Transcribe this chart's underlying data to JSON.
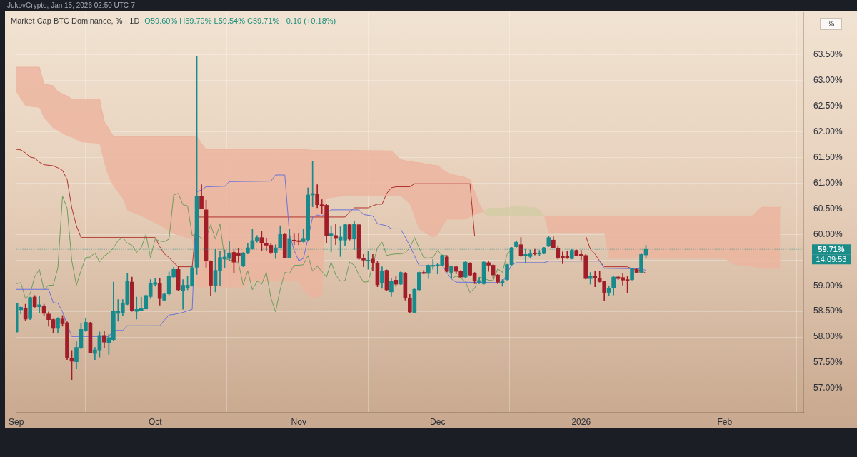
{
  "chart_data": {
    "type": "candlestick",
    "title": "Market Cap BTC Dominance, % · 1D",
    "subtitle": "O59.60% H59.79% L59.54% C59.71% +0.10 (+0.18%)",
    "ylabel": "%",
    "annotations": [
      "JukovCrypto, Jan 15, 2026 02:50 UTC-7",
      "14:09:53"
    ],
    "x": [
      "2025-09-01",
      "2025-09-02",
      "2025-09-03",
      "2025-09-04",
      "2025-09-05",
      "2025-09-06",
      "2025-09-07",
      "2025-09-08",
      "2025-09-09",
      "2025-09-10",
      "2025-09-11",
      "2025-09-12",
      "2025-09-13",
      "2025-09-14",
      "2025-09-15",
      "2025-09-16",
      "2025-09-17",
      "2025-09-18",
      "2025-09-19",
      "2025-09-20",
      "2025-09-21",
      "2025-09-22",
      "2025-09-23",
      "2025-09-24",
      "2025-09-25",
      "2025-09-26",
      "2025-09-27",
      "2025-09-28",
      "2025-09-29",
      "2025-09-30",
      "2025-10-01",
      "2025-10-02",
      "2025-10-03",
      "2025-10-04",
      "2025-10-05",
      "2025-10-06",
      "2025-10-07",
      "2025-10-08",
      "2025-10-09",
      "2025-10-10",
      "2025-10-11",
      "2025-10-12",
      "2025-10-13",
      "2025-10-14",
      "2025-10-15",
      "2025-10-16",
      "2025-10-17",
      "2025-10-18",
      "2025-10-19",
      "2025-10-20",
      "2025-10-21",
      "2025-10-22",
      "2025-10-23",
      "2025-10-24",
      "2025-10-25",
      "2025-10-26",
      "2025-10-27",
      "2025-10-28",
      "2025-10-29",
      "2025-10-30",
      "2025-10-31",
      "2025-11-01",
      "2025-11-02",
      "2025-11-03",
      "2025-11-04",
      "2025-11-05",
      "2025-11-06",
      "2025-11-07",
      "2025-11-08",
      "2025-11-09",
      "2025-11-10",
      "2025-11-11",
      "2025-11-12",
      "2025-11-13",
      "2025-11-14",
      "2025-11-15",
      "2025-11-16",
      "2025-11-17",
      "2025-11-18",
      "2025-11-19",
      "2025-11-20",
      "2025-11-21",
      "2025-11-22",
      "2025-11-23",
      "2025-11-24",
      "2025-11-25",
      "2025-11-26",
      "2025-11-27",
      "2025-11-28",
      "2025-11-29",
      "2025-11-30",
      "2025-12-01",
      "2025-12-02",
      "2025-12-03",
      "2025-12-04",
      "2025-12-05",
      "2025-12-06",
      "2025-12-07",
      "2025-12-08",
      "2025-12-09",
      "2025-12-10",
      "2025-12-11",
      "2025-12-12",
      "2025-12-13",
      "2025-12-14",
      "2025-12-15",
      "2025-12-16",
      "2025-12-17",
      "2025-12-18",
      "2025-12-19",
      "2025-12-20",
      "2025-12-21",
      "2025-12-22",
      "2025-12-23",
      "2025-12-24",
      "2025-12-25",
      "2025-12-26",
      "2025-12-27",
      "2025-12-28",
      "2025-12-29",
      "2025-12-30",
      "2025-12-31",
      "2026-01-01",
      "2026-01-02",
      "2026-01-03",
      "2026-01-04",
      "2026-01-05",
      "2026-01-06",
      "2026-01-07",
      "2026-01-08",
      "2026-01-09",
      "2026-01-10",
      "2026-01-11",
      "2026-01-12",
      "2026-01-13",
      "2026-01-14",
      "2026-01-15"
    ],
    "ohlc": [
      [
        58.1,
        58.66,
        58.08,
        58.65
      ],
      [
        58.53,
        58.59,
        58.45,
        58.58
      ],
      [
        58.56,
        58.64,
        58.32,
        58.35
      ],
      [
        58.36,
        58.78,
        58.34,
        58.77
      ],
      [
        58.78,
        58.81,
        58.58,
        58.59
      ],
      [
        58.59,
        58.79,
        58.48,
        58.63
      ],
      [
        58.61,
        58.64,
        58.42,
        58.46
      ],
      [
        58.45,
        58.49,
        58.21,
        58.34
      ],
      [
        58.34,
        58.35,
        58.09,
        58.17
      ],
      [
        58.17,
        58.38,
        58.09,
        58.36
      ],
      [
        58.35,
        58.42,
        58.21,
        58.26
      ],
      [
        58.28,
        58.3,
        57.56,
        57.59
      ],
      [
        57.59,
        57.74,
        57.17,
        57.53
      ],
      [
        57.52,
        57.91,
        57.38,
        57.8
      ],
      [
        57.79,
        58.26,
        57.77,
        58.15
      ],
      [
        58.13,
        58.37,
        58.11,
        58.29
      ],
      [
        58.28,
        58.29,
        57.69,
        57.7
      ],
      [
        57.68,
        57.8,
        57.56,
        57.75
      ],
      [
        57.75,
        58.1,
        57.61,
        58.03
      ],
      [
        58.03,
        58.11,
        57.79,
        57.9
      ],
      [
        57.89,
        58.05,
        57.66,
        57.99
      ],
      [
        57.95,
        59.07,
        57.93,
        58.51
      ],
      [
        58.46,
        58.73,
        58.31,
        58.5
      ],
      [
        58.48,
        58.73,
        58.42,
        58.66
      ],
      [
        58.64,
        59.24,
        58.63,
        59.09
      ],
      [
        59.07,
        59.17,
        58.5,
        58.52
      ],
      [
        58.5,
        58.78,
        58.35,
        58.54
      ],
      [
        58.52,
        58.78,
        58.51,
        58.56
      ],
      [
        58.55,
        58.82,
        58.54,
        58.81
      ],
      [
        58.79,
        59.12,
        58.75,
        59.04
      ],
      [
        59.03,
        59.15,
        58.99,
        59.06
      ],
      [
        59.04,
        59.15,
        58.62,
        58.75
      ],
      [
        58.72,
        58.85,
        58.71,
        58.84
      ],
      [
        58.84,
        59.27,
        58.82,
        59.18
      ],
      [
        59.17,
        59.36,
        59.15,
        59.32
      ],
      [
        59.32,
        59.37,
        58.9,
        58.92
      ],
      [
        58.9,
        59.12,
        58.54,
        59.01
      ],
      [
        58.96,
        59.19,
        58.92,
        59.01
      ],
      [
        59.0,
        59.39,
        58.99,
        59.35
      ],
      [
        59.36,
        63.47,
        59.22,
        60.75
      ],
      [
        60.75,
        60.97,
        60.5,
        60.51
      ],
      [
        60.48,
        60.67,
        59.36,
        59.49
      ],
      [
        59.48,
        59.49,
        58.8,
        59.01
      ],
      [
        59.0,
        59.71,
        58.88,
        59.3
      ],
      [
        59.3,
        59.68,
        59.0,
        59.55
      ],
      [
        59.52,
        59.7,
        59.35,
        59.56
      ],
      [
        59.53,
        59.87,
        59.48,
        59.64
      ],
      [
        59.65,
        59.69,
        59.25,
        59.46
      ],
      [
        59.64,
        59.73,
        59.46,
        59.58
      ],
      [
        59.39,
        59.65,
        59.37,
        59.64
      ],
      [
        59.64,
        59.83,
        59.62,
        59.74
      ],
      [
        59.72,
        60.1,
        59.71,
        59.88
      ],
      [
        59.88,
        59.98,
        59.85,
        59.94
      ],
      [
        59.94,
        60.06,
        59.69,
        59.83
      ],
      [
        59.82,
        59.92,
        59.69,
        59.79
      ],
      [
        59.79,
        59.83,
        59.62,
        59.65
      ],
      [
        59.65,
        59.8,
        59.53,
        59.74
      ],
      [
        59.74,
        60.17,
        59.73,
        60.0
      ],
      [
        60.0,
        60.01,
        59.54,
        59.55
      ],
      [
        59.55,
        60.1,
        59.54,
        59.91
      ],
      [
        59.89,
        60.01,
        59.8,
        59.87
      ],
      [
        59.88,
        60.02,
        59.8,
        59.86
      ],
      [
        59.86,
        60.1,
        59.85,
        59.91
      ],
      [
        59.9,
        60.91,
        59.87,
        60.77
      ],
      [
        60.77,
        61.42,
        60.54,
        60.8
      ],
      [
        60.79,
        60.97,
        60.52,
        60.58
      ],
      [
        60.58,
        60.68,
        60.4,
        60.56
      ],
      [
        60.57,
        60.6,
        59.83,
        59.98
      ],
      [
        59.98,
        60.17,
        59.66,
        60.01
      ],
      [
        59.98,
        60.21,
        59.8,
        59.92
      ],
      [
        59.89,
        60.15,
        59.57,
        59.95
      ],
      [
        59.89,
        60.2,
        59.78,
        60.19
      ],
      [
        60.19,
        60.2,
        59.89,
        59.91
      ],
      [
        59.91,
        60.25,
        59.71,
        60.2
      ],
      [
        60.19,
        60.2,
        59.51,
        59.53
      ],
      [
        59.54,
        59.61,
        59.37,
        59.5
      ],
      [
        59.48,
        59.68,
        59.32,
        59.5
      ],
      [
        59.52,
        59.61,
        59.3,
        59.44
      ],
      [
        59.44,
        59.47,
        58.98,
        59.02
      ],
      [
        59.06,
        59.37,
        58.95,
        59.29
      ],
      [
        59.3,
        59.31,
        58.9,
        58.92
      ],
      [
        58.88,
        59.15,
        58.79,
        59.09
      ],
      [
        59.11,
        59.19,
        58.99,
        59.03
      ],
      [
        59.03,
        59.27,
        59.02,
        59.26
      ],
      [
        59.24,
        59.26,
        58.72,
        58.76
      ],
      [
        58.76,
        58.83,
        58.48,
        58.49
      ],
      [
        58.48,
        58.94,
        58.47,
        58.93
      ],
      [
        58.92,
        59.27,
        58.91,
        59.26
      ],
      [
        59.26,
        59.3,
        59.23,
        59.24
      ],
      [
        59.24,
        59.41,
        59.14,
        59.4
      ],
      [
        59.38,
        59.51,
        59.32,
        59.4
      ],
      [
        59.39,
        59.43,
        59.23,
        59.41
      ],
      [
        59.4,
        59.6,
        59.39,
        59.59
      ],
      [
        59.56,
        59.59,
        59.27,
        59.28
      ],
      [
        59.26,
        59.39,
        59.15,
        59.38
      ],
      [
        59.37,
        59.39,
        59.23,
        59.28
      ],
      [
        59.28,
        59.3,
        59.16,
        59.17
      ],
      [
        59.17,
        59.47,
        59.16,
        59.46
      ],
      [
        59.44,
        59.45,
        59.2,
        59.21
      ],
      [
        59.24,
        59.26,
        59.04,
        59.09
      ],
      [
        59.07,
        59.16,
        59.04,
        59.1
      ],
      [
        59.04,
        59.47,
        59.03,
        59.46
      ],
      [
        59.45,
        59.47,
        59.28,
        59.4
      ],
      [
        59.4,
        59.41,
        59.14,
        59.21
      ],
      [
        59.21,
        59.22,
        59.04,
        59.07
      ],
      [
        59.05,
        59.12,
        58.99,
        59.08
      ],
      [
        59.12,
        59.42,
        59.11,
        59.41
      ],
      [
        59.41,
        59.75,
        59.4,
        59.74
      ],
      [
        59.76,
        59.88,
        59.75,
        59.85
      ],
      [
        59.8,
        59.94,
        59.57,
        59.59
      ],
      [
        59.59,
        59.71,
        59.45,
        59.61
      ],
      [
        59.57,
        59.7,
        59.55,
        59.62
      ],
      [
        59.63,
        59.71,
        59.6,
        59.62
      ],
      [
        59.62,
        59.69,
        59.58,
        59.64
      ],
      [
        59.63,
        59.75,
        59.62,
        59.74
      ],
      [
        59.77,
        59.97,
        59.76,
        59.94
      ],
      [
        59.89,
        59.95,
        59.73,
        59.74
      ],
      [
        59.73,
        59.78,
        59.52,
        59.55
      ],
      [
        59.57,
        59.66,
        59.43,
        59.54
      ],
      [
        59.57,
        59.67,
        59.53,
        59.55
      ],
      [
        59.53,
        59.71,
        59.52,
        59.69
      ],
      [
        59.69,
        59.7,
        59.58,
        59.59
      ],
      [
        59.61,
        59.69,
        59.5,
        59.59
      ],
      [
        59.59,
        59.61,
        59.13,
        59.14
      ],
      [
        59.14,
        59.26,
        59.03,
        59.19
      ],
      [
        59.19,
        59.29,
        58.98,
        59.15
      ],
      [
        59.15,
        59.29,
        59.07,
        59.08
      ],
      [
        59.08,
        59.09,
        58.71,
        58.87
      ],
      [
        58.87,
        58.99,
        58.8,
        58.95
      ],
      [
        58.96,
        59.19,
        58.82,
        59.17
      ],
      [
        59.17,
        59.18,
        59.12,
        59.14
      ],
      [
        59.16,
        59.24,
        59.01,
        59.11
      ],
      [
        59.12,
        59.19,
        58.86,
        59.1
      ],
      [
        59.12,
        59.34,
        59.11,
        59.33
      ],
      [
        59.31,
        59.33,
        59.25,
        59.26
      ],
      [
        59.26,
        59.62,
        59.25,
        59.61
      ],
      [
        59.6,
        59.79,
        59.54,
        59.71
      ]
    ],
    "colors": [
      "#178a8c",
      "#178a8c",
      "#a11d27",
      "#178a8c",
      "#a11d27",
      "#178a8c",
      "#a11d27",
      "#a11d27",
      "#a11d27",
      "#178a8c",
      "#a11d27",
      "#a11d27",
      "#a11d27",
      "#178a8c",
      "#178a8c",
      "#178a8c",
      "#a11d27",
      "#178a8c",
      "#178a8c",
      "#a11d27",
      "#178a8c",
      "#178a8c",
      "#178a8c",
      "#178a8c",
      "#178a8c",
      "#a11d27",
      "#178a8c",
      "#178a8c",
      "#178a8c",
      "#178a8c",
      "#178a8c",
      "#a11d27",
      "#178a8c",
      "#178a8c",
      "#178a8c",
      "#a11d27",
      "#178a8c",
      "#178a8c",
      "#178a8c",
      "#178a8c",
      "#a11d27",
      "#a11d27",
      "#a11d27",
      "#178a8c",
      "#178a8c",
      "#178a8c",
      "#178a8c",
      "#a11d27",
      "#a11d27",
      "#178a8c",
      "#178a8c",
      "#178a8c",
      "#178a8c",
      "#a11d27",
      "#a11d27",
      "#a11d27",
      "#178a8c",
      "#178a8c",
      "#a11d27",
      "#178a8c",
      "#a11d27",
      "#a11d27",
      "#178a8c",
      "#178a8c",
      "#178a8c",
      "#a11d27",
      "#a11d27",
      "#a11d27",
      "#178a8c",
      "#a11d27",
      "#178a8c",
      "#178a8c",
      "#a11d27",
      "#178a8c",
      "#a11d27",
      "#a11d27",
      "#178a8c",
      "#a11d27",
      "#a11d27",
      "#178a8c",
      "#a11d27",
      "#178a8c",
      "#a11d27",
      "#178a8c",
      "#a11d27",
      "#a11d27",
      "#178a8c",
      "#178a8c",
      "#a11d27",
      "#178a8c",
      "#178a8c",
      "#178a8c",
      "#178a8c",
      "#a11d27",
      "#178a8c",
      "#a11d27",
      "#a11d27",
      "#178a8c",
      "#a11d27",
      "#a11d27",
      "#178a8c",
      "#178a8c",
      "#a11d27",
      "#a11d27",
      "#a11d27",
      "#178a8c",
      "#178a8c",
      "#178a8c",
      "#178a8c",
      "#a11d27",
      "#178a8c",
      "#178a8c",
      "#a11d27",
      "#178a8c",
      "#178a8c",
      "#178a8c",
      "#a11d27",
      "#a11d27",
      "#a11d27",
      "#a11d27",
      "#178a8c",
      "#a11d27",
      "#a11d27",
      "#a11d27",
      "#178a8c",
      "#a11d27",
      "#a11d27",
      "#a11d27",
      "#178a8c",
      "#178a8c",
      "#a11d27",
      "#a11d27",
      "#a11d27",
      "#178a8c",
      "#a11d27",
      "#178a8c",
      "#178a8c"
    ],
    "series": [
      {
        "type": "line",
        "color": "#ecb39e",
        "x": [
          "2025-09-01",
          "2025-09-03",
          "2025-09-06",
          "2025-09-07",
          "2025-09-09",
          "2025-09-10",
          "2025-09-12",
          "2025-09-13",
          "2025-09-15",
          "2025-09-19",
          "2025-09-20",
          "2025-09-21",
          "2025-09-22",
          "2025-09-24",
          "2025-09-25",
          "2025-09-28",
          "2025-09-30",
          "2025-10-03",
          "2025-10-05",
          "2025-10-09",
          "2025-10-10",
          "2025-10-11",
          "2025-10-12",
          "2025-10-20",
          "2025-10-21",
          "2025-11-01",
          "2025-11-02",
          "2025-11-04",
          "2025-11-06",
          "2025-11-07",
          "2025-11-11",
          "2025-11-21",
          "2025-11-23",
          "2025-11-25",
          "2025-11-27",
          "2025-11-30",
          "2025-12-01",
          "2025-12-03",
          "2025-12-04",
          "2025-12-07",
          "2025-12-08",
          "2025-12-09",
          "2025-12-10",
          "2025-12-11",
          "2025-12-17",
          "2025-12-24",
          "2025-12-25",
          "2026-01-06",
          "2026-01-07",
          "2026-02-01",
          "2026-02-03",
          "2026-02-07",
          "2026-02-08",
          "2026-02-09",
          "2026-02-13"
        ],
        "values": [
          63.26,
          63.26,
          63.26,
          62.93,
          62.9,
          62.78,
          62.7,
          62.64,
          62.64,
          62.64,
          62.2,
          62.06,
          61.91,
          61.91,
          61.91,
          61.91,
          61.91,
          61.91,
          61.91,
          61.91,
          61.91,
          61.77,
          61.66,
          61.66,
          61.66,
          61.66,
          61.66,
          61.64,
          61.64,
          61.64,
          61.64,
          61.63,
          61.46,
          61.42,
          61.4,
          61.35,
          61.34,
          61.21,
          61.17,
          61.11,
          61.07,
          60.83,
          60.59,
          60.44,
          null,
          60.36,
          60.36,
          60.36,
          60.36,
          60.36,
          60.36,
          60.36,
          60.45,
          60.53,
          60.53
        ],
        "upper": [
          63.26,
          63.26,
          63.26,
          62.93,
          62.9,
          62.78,
          62.7,
          62.64,
          62.64,
          62.64,
          62.2,
          62.06,
          61.91,
          61.91,
          61.91,
          61.91,
          61.91,
          61.91,
          61.91,
          61.91,
          61.91,
          61.77,
          61.66,
          61.66,
          61.66,
          61.66,
          61.66,
          61.64,
          61.64,
          61.64,
          61.64,
          61.63,
          61.46,
          61.42,
          61.4,
          61.35,
          61.34,
          61.21,
          61.17,
          61.11,
          61.07,
          60.83,
          60.59,
          60.44,
          null,
          60.36,
          60.36,
          60.36,
          60.36,
          60.36,
          60.36,
          60.36,
          60.45,
          60.53,
          60.53
        ],
        "lower": [
          62.78,
          62.5,
          62.47,
          62.27,
          62.07,
          62.02,
          61.92,
          61.89,
          61.8,
          61.77,
          61.4,
          61.11,
          60.94,
          60.7,
          60.47,
          60.36,
          60.27,
          60.13,
          60.01,
          59.9,
          58.97,
          58.97,
          58.97,
          58.97,
          59.08,
          59.08,
          58.9,
          58.76,
          58.79,
          60.7,
          60.75,
          60.75,
          60.75,
          60.59,
          60.1,
          59.94,
          59.99,
          60.29,
          60.29,
          60.29,
          60.34,
          60.38,
          60.42,
          60.44,
          null,
          60.36,
          60.03,
          60.03,
          59.53,
          59.53,
          59.41,
          59.37,
          59.34,
          59.33,
          59.33
        ]
      },
      {
        "type": "line",
        "color": "#d3cca4",
        "x": [
          "2025-12-11",
          "2025-12-12",
          "2025-12-15",
          "2025-12-18",
          "2025-12-22",
          "2025-12-23",
          "2025-12-24"
        ],
        "values": [
          60.44,
          60.36,
          60.36,
          60.36,
          60.36,
          60.36,
          60.36
        ],
        "upper": [
          60.44,
          60.52,
          60.52,
          60.55,
          60.53,
          60.49,
          60.36
        ],
        "lower": [
          60.44,
          60.36,
          60.36,
          60.36,
          60.36,
          60.36,
          60.36
        ]
      },
      {
        "type": "line",
        "color": "#6b72dc",
        "x": [
          "2025-09-01",
          "2025-09-08",
          "2025-09-09",
          "2025-09-10",
          "2025-09-11",
          "2025-09-13",
          "2025-09-21",
          "2025-09-22",
          "2025-09-24",
          "2025-09-25",
          "2025-10-02",
          "2025-10-03",
          "2025-10-04",
          "2025-10-05",
          "2025-10-07",
          "2025-10-09",
          "2025-10-10",
          "2025-10-11",
          "2025-10-12",
          "2025-10-16",
          "2025-10-17",
          "2025-10-26",
          "2025-10-27",
          "2025-10-29",
          "2025-10-30",
          "2025-10-31",
          "2025-11-01",
          "2025-11-02",
          "2025-11-03",
          "2025-11-04",
          "2025-11-05",
          "2025-11-06",
          "2025-11-08",
          "2025-11-14",
          "2025-11-15",
          "2025-11-17",
          "2025-11-18",
          "2025-11-20",
          "2025-11-21",
          "2025-11-23",
          "2025-11-25",
          "2025-11-27",
          "2025-12-02",
          "2025-12-04",
          "2025-12-05",
          "2025-12-15",
          "2025-12-17",
          "2025-12-18",
          "2025-12-24",
          "2025-12-25",
          "2026-01-05",
          "2026-01-06",
          "2026-01-14",
          "2026-01-15"
        ],
        "values": [
          58.93,
          58.93,
          58.67,
          58.66,
          58.49,
          58.01,
          58.01,
          58.13,
          58.13,
          58.22,
          58.22,
          58.33,
          58.43,
          58.44,
          58.48,
          58.54,
          60.83,
          60.87,
          60.93,
          60.94,
          61.03,
          61.04,
          61.16,
          61.16,
          60.01,
          59.69,
          59.49,
          59.53,
          59.92,
          60.34,
          60.38,
          60.36,
          60.48,
          60.48,
          60.39,
          60.36,
          60.21,
          60.17,
          60.11,
          60.11,
          59.78,
          59.39,
          59.39,
          59.13,
          59.07,
          59.06,
          59.41,
          59.45,
          59.45,
          59.48,
          59.48,
          59.34,
          59.33,
          59.3
        ]
      },
      {
        "type": "line",
        "color": "#b3322d",
        "x": [
          "2025-09-01",
          "2025-09-02",
          "2025-09-03",
          "2025-09-04",
          "2025-09-05",
          "2025-09-06",
          "2025-09-07",
          "2025-09-09",
          "2025-09-10",
          "2025-09-11",
          "2025-09-12",
          "2025-09-13",
          "2025-09-14",
          "2025-09-15",
          "2025-10-01",
          "2025-10-02",
          "2025-10-03",
          "2025-10-04",
          "2025-10-05",
          "2025-10-06",
          "2025-10-09",
          "2025-10-10",
          "2025-11-11",
          "2025-11-12",
          "2025-11-13",
          "2025-11-16",
          "2025-11-17",
          "2025-11-18",
          "2025-11-19",
          "2025-11-20",
          "2025-11-21",
          "2025-11-22",
          "2025-11-25",
          "2025-11-26",
          "2025-12-08",
          "2025-12-09",
          "2026-01-02",
          "2026-01-03",
          "2026-01-04",
          "2026-01-05",
          "2026-01-06",
          "2026-01-11",
          "2026-01-12",
          "2026-01-13",
          "2026-01-14",
          "2026-01-15"
        ],
        "values": [
          61.66,
          61.65,
          61.59,
          61.51,
          61.49,
          61.41,
          61.36,
          61.34,
          61.3,
          61.25,
          61.07,
          60.52,
          60.17,
          59.94,
          59.94,
          59.76,
          59.62,
          59.55,
          59.45,
          59.37,
          59.37,
          60.34,
          60.34,
          60.44,
          60.52,
          60.52,
          60.56,
          60.59,
          60.59,
          60.8,
          60.91,
          60.93,
          60.93,
          60.99,
          60.99,
          59.97,
          59.97,
          59.71,
          59.62,
          59.48,
          59.37,
          59.37,
          59.33,
          59.31,
          59.3,
          59.24
        ]
      },
      {
        "type": "line",
        "color": "#6e9e5c",
        "x": [
          "2025-09-01",
          "2025-09-02",
          "2025-09-03",
          "2025-09-04",
          "2025-09-05",
          "2025-09-06",
          "2025-09-07",
          "2025-09-08",
          "2025-09-09",
          "2025-09-10",
          "2025-09-11",
          "2025-09-12",
          "2025-09-13",
          "2025-09-14",
          "2025-09-15",
          "2025-09-16",
          "2025-09-17",
          "2025-09-18",
          "2025-09-19",
          "2025-09-20",
          "2025-09-21",
          "2025-09-22",
          "2025-09-23",
          "2025-09-24",
          "2025-09-25",
          "2025-09-26",
          "2025-09-27",
          "2025-09-28",
          "2025-09-29",
          "2025-09-30",
          "2025-10-01",
          "2025-10-02",
          "2025-10-03",
          "2025-10-04",
          "2025-10-05",
          "2025-10-06",
          "2025-10-07",
          "2025-10-08",
          "2025-10-09",
          "2025-10-10",
          "2025-10-11",
          "2025-10-12",
          "2025-10-13",
          "2025-10-14",
          "2025-10-15",
          "2025-10-16",
          "2025-10-17",
          "2025-10-18",
          "2025-10-19",
          "2025-10-20",
          "2025-10-21",
          "2025-10-22",
          "2025-10-23",
          "2025-10-24",
          "2025-10-25",
          "2025-10-26",
          "2025-10-27",
          "2025-10-28",
          "2025-10-29",
          "2025-10-30",
          "2025-10-31",
          "2025-11-01",
          "2025-11-02",
          "2025-11-03",
          "2025-11-04",
          "2025-11-05",
          "2025-11-06",
          "2025-11-07",
          "2025-11-08",
          "2025-11-09",
          "2025-11-10",
          "2025-11-11",
          "2025-11-12",
          "2025-11-13",
          "2025-11-14",
          "2025-11-15",
          "2025-11-16",
          "2025-11-17",
          "2025-11-18",
          "2025-11-19",
          "2025-11-20",
          "2025-11-21",
          "2025-11-22",
          "2025-11-23",
          "2025-11-24",
          "2025-11-25",
          "2025-11-26",
          "2025-11-27",
          "2025-11-28",
          "2025-11-29",
          "2025-11-30",
          "2025-12-01",
          "2025-12-02",
          "2025-12-03",
          "2025-12-04",
          "2025-12-05",
          "2025-12-06",
          "2025-12-07",
          "2025-12-08",
          "2025-12-09",
          "2025-12-10",
          "2025-12-11",
          "2025-12-12",
          "2025-12-13",
          "2025-12-14",
          "2025-12-15",
          "2025-12-16",
          "2025-12-17"
        ],
        "values": [
          59.04,
          59.06,
          58.75,
          58.84,
          59.18,
          59.32,
          58.92,
          59.01,
          59.01,
          59.35,
          60.75,
          60.51,
          59.49,
          59.01,
          59.3,
          59.55,
          59.56,
          59.64,
          59.46,
          59.58,
          59.64,
          59.74,
          59.88,
          59.94,
          59.83,
          59.79,
          59.65,
          59.74,
          60.0,
          59.55,
          59.91,
          59.87,
          59.86,
          59.91,
          60.77,
          60.8,
          60.58,
          60.56,
          59.98,
          60.01,
          59.92,
          59.95,
          60.19,
          59.91,
          60.2,
          59.53,
          59.5,
          59.5,
          59.44,
          59.02,
          59.29,
          58.92,
          59.09,
          59.03,
          59.26,
          58.76,
          58.49,
          58.93,
          59.26,
          59.24,
          59.4,
          59.4,
          59.41,
          59.59,
          59.28,
          59.38,
          59.28,
          59.17,
          59.46,
          59.21,
          59.09,
          59.1,
          59.46,
          59.4,
          59.21,
          59.07,
          59.08,
          59.41,
          59.74,
          59.85,
          59.59,
          59.61,
          59.62,
          59.62,
          59.64,
          59.74,
          59.94,
          59.74,
          59.55,
          59.54,
          59.55,
          59.69,
          59.59,
          59.59,
          59.14,
          59.19,
          59.15,
          59.08,
          58.87,
          58.95,
          59.17,
          59.14,
          59.11,
          59.1,
          59.33,
          59.26,
          59.61,
          59.71
        ]
      }
    ],
    "xlim": [
      "2025-09-01",
      "2026-02-18"
    ],
    "xticks": [
      {
        "value": "2025-09-01",
        "label": "Sep"
      },
      {
        "value": "2025-10-01",
        "label": "Oct"
      },
      {
        "value": "2025-11-01",
        "label": "Nov"
      },
      {
        "value": "2025-12-01",
        "label": "Dec"
      },
      {
        "value": "2026-01-01",
        "label": "2026"
      },
      {
        "value": "2026-02-01",
        "label": "Feb"
      }
    ],
    "ylim": [
      56.54,
      64.33
    ],
    "yticks": [
      {
        "value": 57,
        "label": "57.00%"
      },
      {
        "value": 57.5,
        "label": "57.50%"
      },
      {
        "value": 58,
        "label": "58.00%"
      },
      {
        "value": 58.5,
        "label": "58.50%"
      },
      {
        "value": 59,
        "label": "59.00%"
      },
      {
        "value": 59.5,
        "label": null
      },
      {
        "value": 60,
        "label": "60.00%"
      },
      {
        "value": 60.5,
        "label": "60.50%"
      },
      {
        "value": 61,
        "label": "61.00%"
      },
      {
        "value": 61.5,
        "label": "61.50%"
      },
      {
        "value": 62,
        "label": "62.00%"
      },
      {
        "value": 62.5,
        "label": "62.50%"
      },
      {
        "value": 63,
        "label": "63.00%"
      },
      {
        "value": 63.5,
        "label": "63.50%"
      }
    ],
    "ref_lines": [
      {
        "axis": "y",
        "value": 59.71,
        "label": "59.71%",
        "color": "#1a8c8a",
        "line_style": "dotted"
      }
    ],
    "grid": true
  }
}
